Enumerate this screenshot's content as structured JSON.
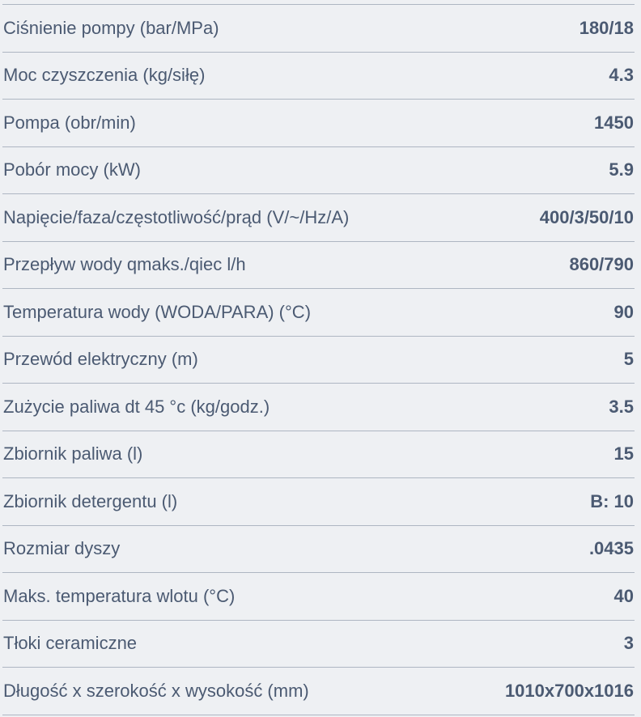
{
  "specs": [
    {
      "label": "Ciśnienie pompy (bar/MPa)",
      "value": "180/18"
    },
    {
      "label": "Moc czyszczenia (kg/siłę)",
      "value": "4.3"
    },
    {
      "label": "Pompa (obr/min)",
      "value": "1450"
    },
    {
      "label": "Pobór mocy (kW)",
      "value": "5.9"
    },
    {
      "label": "Napięcie/faza/częstotliwość/prąd (V/~/Hz/A)",
      "value": "400/3/50/10"
    },
    {
      "label": "Przepływ wody qmaks./qiec l/h",
      "value": "860/790"
    },
    {
      "label": "Temperatura wody (WODA/PARA) (°C)",
      "value": "90"
    },
    {
      "label": "Przewód elektryczny (m)",
      "value": "5"
    },
    {
      "label": "Zużycie paliwa dt 45 °c (kg/godz.)",
      "value": "3.5"
    },
    {
      "label": "Zbiornik paliwa (l)",
      "value": "15"
    },
    {
      "label": "Zbiornik detergentu (l)",
      "value": "B: 10"
    },
    {
      "label": "Rozmiar dyszy",
      "value": ".0435"
    },
    {
      "label": "Maks. temperatura wlotu (°C)",
      "value": "40"
    },
    {
      "label": "Tłoki ceramiczne",
      "value": "3"
    },
    {
      "label": "Długość x szerokość x wysokość (mm)",
      "value": "1010x700x1016"
    }
  ]
}
